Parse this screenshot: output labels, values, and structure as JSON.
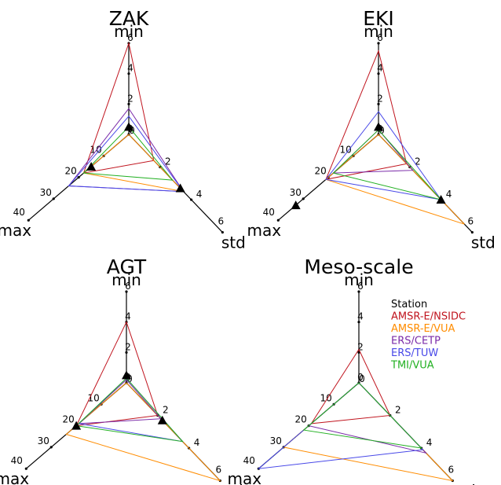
{
  "colors": {
    "Station": "#000000",
    "AMSR-E/NSIDC": "#c0141e",
    "AMSR-E/VUA": "#ff8c00",
    "ERS/CETP": "#7a2aa8",
    "ERS/TUW": "#4848e8",
    "TMI/VUA": "#22b022"
  },
  "legend": [
    "Station",
    "AMSR-E/NSIDC",
    "AMSR-E/VUA",
    "ERS/CETP",
    "ERS/TUW",
    "TMI/VUA"
  ],
  "axes": {
    "min": {
      "label": "min",
      "range": [
        0,
        6
      ],
      "ticks": [
        0,
        2,
        4,
        6
      ]
    },
    "max": {
      "label": "max",
      "range": [
        0,
        40
      ],
      "ticks": [
        10,
        20,
        30,
        40
      ]
    },
    "std": {
      "label": "std",
      "range": [
        0,
        6
      ],
      "ticks": [
        2,
        4,
        6
      ]
    }
  },
  "chart_data": [
    {
      "type": "radar",
      "title": "ZAK",
      "axes": [
        "min",
        "max",
        "std"
      ],
      "station": {
        "min": 0.5,
        "max": 15,
        "std": 3.3
      },
      "series": [
        {
          "name": "AMSR-E/NSIDC",
          "min": 6.0,
          "max": 18,
          "std": 1.6
        },
        {
          "name": "AMSR-E/VUA",
          "min": 0.0,
          "max": 18,
          "std": 3.5
        },
        {
          "name": "ERS/CETP",
          "min": 1.7,
          "max": 24,
          "std": 3.5
        },
        {
          "name": "ERS/TUW",
          "min": 1.2,
          "max": 24,
          "std": 3.5
        },
        {
          "name": "TMI/VUA",
          "min": 0.5,
          "max": 18,
          "std": 2.8
        }
      ]
    },
    {
      "type": "radar",
      "title": "EKI",
      "axes": [
        "min",
        "max",
        "std"
      ],
      "station": {
        "min": 0.5,
        "max": 33,
        "std": 4.0
      },
      "series": [
        {
          "name": "AMSR-E/NSIDC",
          "min": 5.5,
          "max": 21,
          "std": 1.8
        },
        {
          "name": "AMSR-E/VUA",
          "min": 0.0,
          "max": 21,
          "std": 5.5
        },
        {
          "name": "ERS/CETP",
          "min": 0.3,
          "max": 18,
          "std": 2.2
        },
        {
          "name": "ERS/TUW",
          "min": 1.5,
          "max": 21,
          "std": 4.0
        },
        {
          "name": "TMI/VUA",
          "min": 0.3,
          "max": 18,
          "std": 4.0
        }
      ]
    },
    {
      "type": "radar",
      "title": "AGT",
      "axes": [
        "min",
        "max",
        "std"
      ],
      "station": {
        "min": 0.5,
        "max": 20,
        "std": 2.3
      },
      "series": [
        {
          "name": "AMSR-E/NSIDC",
          "min": 4.0,
          "max": 20,
          "std": 2.0
        },
        {
          "name": "AMSR-E/VUA",
          "min": 0.0,
          "max": 24,
          "std": 6.0
        },
        {
          "name": "ERS/CETP",
          "min": 0.2,
          "max": 19,
          "std": 2.2
        },
        {
          "name": "ERS/TUW",
          "min": 0.3,
          "max": 19,
          "std": 3.6
        },
        {
          "name": "TMI/VUA",
          "min": 0.3,
          "max": 20,
          "std": 3.6
        }
      ]
    },
    {
      "type": "radar",
      "title": "Meso-scale",
      "axes": [
        "min",
        "max",
        "std"
      ],
      "station": null,
      "series": [
        {
          "name": "AMSR-E/NSIDC",
          "min": 2.2,
          "max": 19,
          "std": 2.0
        },
        {
          "name": "AMSR-E/VUA",
          "min": 0.0,
          "max": 30,
          "std": 6.0
        },
        {
          "name": "ERS/CETP",
          "min": 0.0,
          "max": 20,
          "std": 4.3
        },
        {
          "name": "ERS/TUW",
          "min": 0.0,
          "max": 40,
          "std": 4.1
        },
        {
          "name": "TMI/VUA",
          "min": 0.0,
          "max": 22,
          "std": 4.0
        }
      ]
    }
  ]
}
